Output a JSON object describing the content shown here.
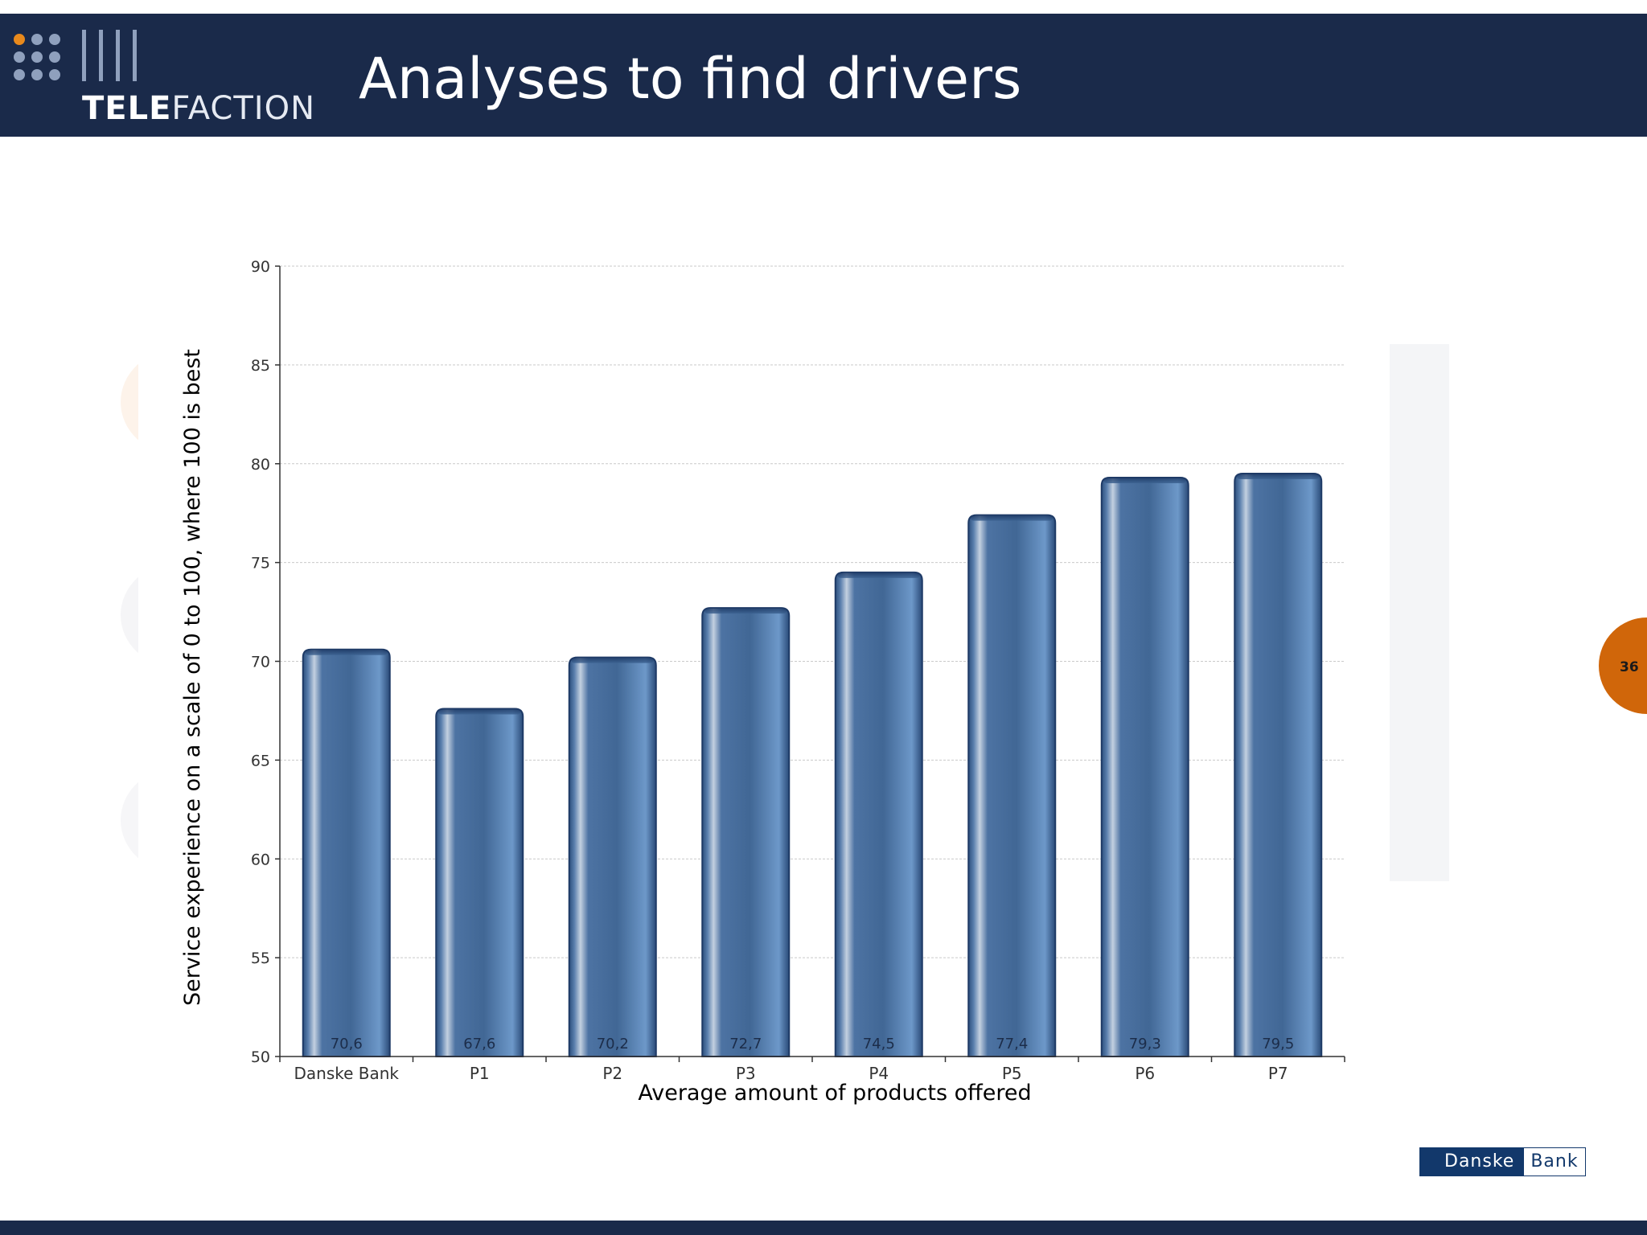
{
  "header": {
    "title": "Analyses to find drivers",
    "logo_bold": "TELE",
    "logo_light": "FACTION"
  },
  "footer": {
    "page_number": "36",
    "bank_logo_left": "Danske",
    "bank_logo_right": "Bank"
  },
  "colors": {
    "header_bg": "#1a2a4a",
    "bar": "#4a74a6",
    "badge": "#d0660a",
    "logo_dot_accent": "#e8891c"
  },
  "chart_data": {
    "type": "bar",
    "categories": [
      "Danske Bank",
      "P1",
      "P2",
      "P3",
      "P4",
      "P5",
      "P6",
      "P7"
    ],
    "values": [
      70.6,
      67.6,
      70.2,
      72.7,
      74.5,
      77.4,
      79.3,
      79.5
    ],
    "data_labels": [
      "70,6",
      "67,6",
      "70,2",
      "72,7",
      "74,5",
      "77,4",
      "79,3",
      "79,5"
    ],
    "xlabel": "Average amount of products offered",
    "ylabel": "Service experience on a scale of 0 to 100, where 100 is best",
    "ylim": [
      50,
      90
    ],
    "yticks": [
      50,
      55,
      60,
      65,
      70,
      75,
      80,
      85,
      90
    ],
    "grid": true,
    "legend": "none"
  }
}
